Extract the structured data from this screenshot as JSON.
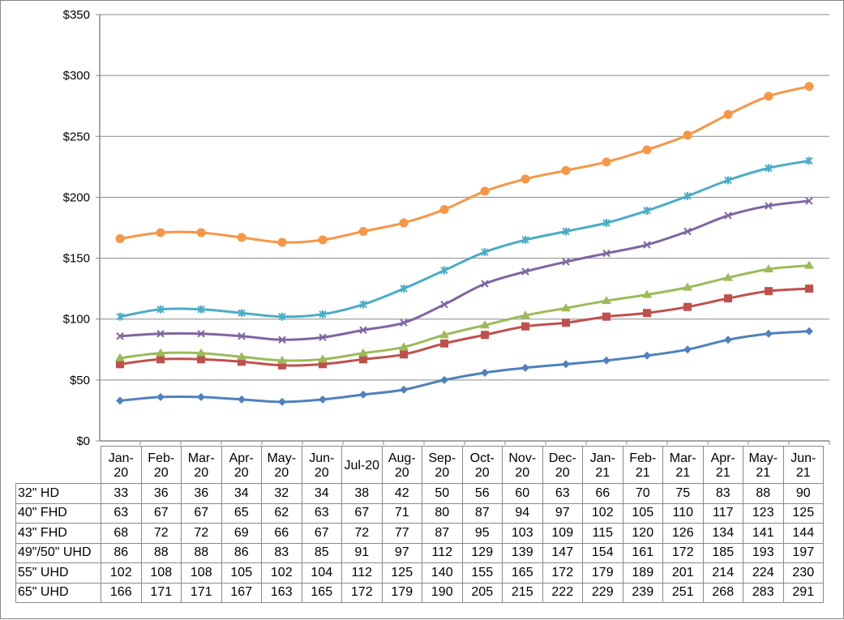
{
  "chart_data": {
    "type": "line",
    "title": "",
    "xlabel": "",
    "ylabel": "",
    "ylim": [
      0,
      350
    ],
    "yticks": [
      "$0",
      "$50",
      "$100",
      "$150",
      "$200",
      "$250",
      "$300",
      "$350"
    ],
    "grid": true,
    "legend": "data-table-below",
    "categories": [
      "Jan-20",
      "Feb-20",
      "Mar-20",
      "Apr-20",
      "May-20",
      "Jun-20",
      "Jul-20",
      "Aug-20",
      "Sep-20",
      "Oct-20",
      "Nov-20",
      "Dec-20",
      "Jan-21",
      "Feb-21",
      "Mar-21",
      "Apr-21",
      "May-21",
      "Jun-21"
    ],
    "series": [
      {
        "name": "32\" HD",
        "color": "#4F81BD",
        "marker": "diamond",
        "values": [
          33,
          36,
          36,
          34,
          32,
          34,
          38,
          42,
          50,
          56,
          60,
          63,
          66,
          70,
          75,
          83,
          88,
          90
        ]
      },
      {
        "name": "40\" FHD",
        "color": "#C0504D",
        "marker": "square",
        "values": [
          63,
          67,
          67,
          65,
          62,
          63,
          67,
          71,
          80,
          87,
          94,
          97,
          102,
          105,
          110,
          117,
          123,
          125
        ]
      },
      {
        "name": "43\" FHD",
        "color": "#9BBB59",
        "marker": "triangle",
        "values": [
          68,
          72,
          72,
          69,
          66,
          67,
          72,
          77,
          87,
          95,
          103,
          109,
          115,
          120,
          126,
          134,
          141,
          144
        ]
      },
      {
        "name": "49\"/50\" UHD",
        "color": "#8064A2",
        "marker": "x",
        "values": [
          86,
          88,
          88,
          86,
          83,
          85,
          91,
          97,
          112,
          129,
          139,
          147,
          154,
          161,
          172,
          185,
          193,
          197
        ]
      },
      {
        "name": "55\" UHD",
        "color": "#4BACC6",
        "marker": "star",
        "values": [
          102,
          108,
          108,
          105,
          102,
          104,
          112,
          125,
          140,
          155,
          165,
          172,
          179,
          189,
          201,
          214,
          224,
          230
        ]
      },
      {
        "name": "65\" UHD",
        "color": "#F79646",
        "marker": "circle",
        "values": [
          166,
          171,
          171,
          167,
          163,
          165,
          172,
          179,
          190,
          205,
          215,
          222,
          229,
          239,
          251,
          268,
          283,
          291
        ]
      }
    ]
  }
}
